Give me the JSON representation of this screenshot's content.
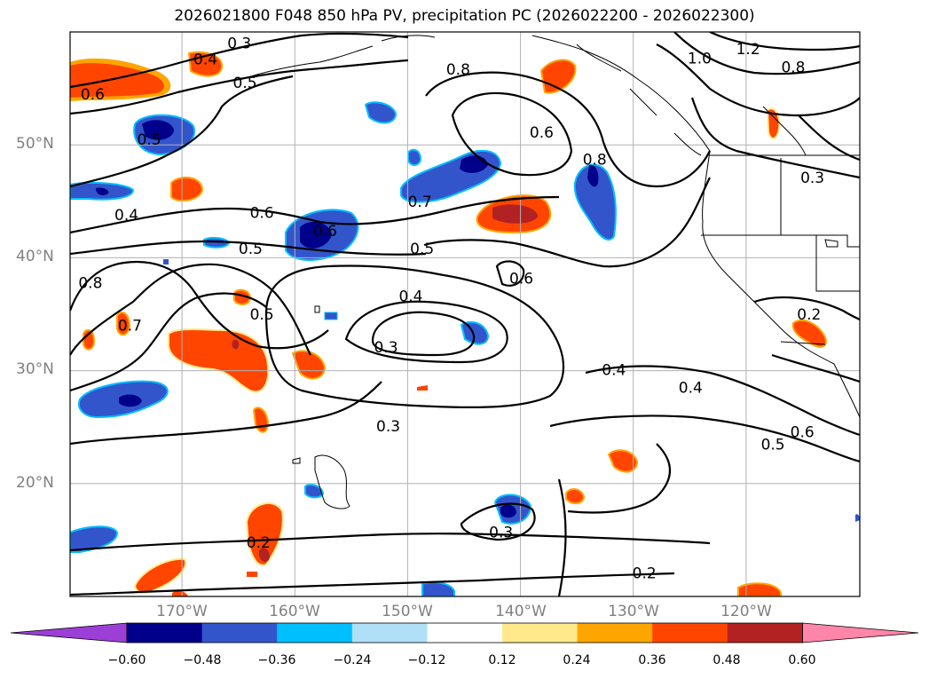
{
  "title": "2026021800 F048 850 hPa PV, precipitation PC (2026022200 - 2026022300)",
  "map": {
    "projection": "lat-lon",
    "lon_range": [
      -180,
      -110
    ],
    "lat_range": [
      10,
      60
    ],
    "lat_labels": [
      "50°N",
      "40°N",
      "30°N",
      "20°N"
    ],
    "lon_labels": [
      "170°W",
      "160°W",
      "150°W",
      "140°W",
      "130°W",
      "120°W"
    ],
    "contour_labels": [
      {
        "text": "0.3",
        "lon": -165,
        "lat": 59
      },
      {
        "text": "0.4",
        "lon": -168,
        "lat": 57.6
      },
      {
        "text": "0.5",
        "lon": -164.5,
        "lat": 55.5
      },
      {
        "text": "0.6",
        "lon": -178,
        "lat": 54.5
      },
      {
        "text": "0.5",
        "lon": -173,
        "lat": 50.5
      },
      {
        "text": "0.4",
        "lon": -175,
        "lat": 43.8
      },
      {
        "text": "0.6",
        "lon": -163,
        "lat": 44
      },
      {
        "text": "0.5",
        "lon": -164,
        "lat": 40.8
      },
      {
        "text": "0.6",
        "lon": -157.4,
        "lat": 42.4
      },
      {
        "text": "0.7",
        "lon": -149,
        "lat": 45
      },
      {
        "text": "0.5",
        "lon": -148.8,
        "lat": 40.8
      },
      {
        "text": "0.8",
        "lon": -178.2,
        "lat": 37.8
      },
      {
        "text": "0.7",
        "lon": -174.7,
        "lat": 34
      },
      {
        "text": "0.5",
        "lon": -163,
        "lat": 35
      },
      {
        "text": "0.4",
        "lon": -149.8,
        "lat": 36.6
      },
      {
        "text": "0.3",
        "lon": -152,
        "lat": 32.1
      },
      {
        "text": "0.6",
        "lon": -140,
        "lat": 38.2
      },
      {
        "text": "0.8",
        "lon": -145.6,
        "lat": 56.7
      },
      {
        "text": "0.6",
        "lon": -138.2,
        "lat": 51.1
      },
      {
        "text": "0.8",
        "lon": -133.5,
        "lat": 48.7
      },
      {
        "text": "1.0",
        "lon": -124.2,
        "lat": 57.7
      },
      {
        "text": "1.2",
        "lon": -119.9,
        "lat": 58.5
      },
      {
        "text": "0.8",
        "lon": -115.9,
        "lat": 56.9
      },
      {
        "text": "0.3",
        "lon": -114.2,
        "lat": 47.1
      },
      {
        "text": "0.2",
        "lon": -114.5,
        "lat": 35
      },
      {
        "text": "0.4",
        "lon": -131.8,
        "lat": 30.1
      },
      {
        "text": "0.4",
        "lon": -125,
        "lat": 28.5
      },
      {
        "text": "0.3",
        "lon": -151.8,
        "lat": 25.1
      },
      {
        "text": "0.5",
        "lon": -117.7,
        "lat": 23.5
      },
      {
        "text": "0.6",
        "lon": -115.1,
        "lat": 24.6
      },
      {
        "text": "0.3",
        "lon": -141.8,
        "lat": 15.7
      },
      {
        "text": "0.2",
        "lon": -163.3,
        "lat": 14.8
      },
      {
        "text": "0.2",
        "lon": -129.1,
        "lat": 12.1
      }
    ]
  },
  "colorbar": {
    "extend": "both",
    "ticks": [
      "−0.60",
      "−0.48",
      "−0.36",
      "−0.24",
      "−0.12",
      "0.12",
      "0.24",
      "0.36",
      "0.48",
      "0.60"
    ],
    "colors": [
      "#9b3fd6",
      "#00008b",
      "#3355cc",
      "#00bfff",
      "#b0e0f8",
      "#ffffff",
      "#ffe98a",
      "#ffa500",
      "#ff4500",
      "#b22222",
      "#ff86a8"
    ]
  }
}
